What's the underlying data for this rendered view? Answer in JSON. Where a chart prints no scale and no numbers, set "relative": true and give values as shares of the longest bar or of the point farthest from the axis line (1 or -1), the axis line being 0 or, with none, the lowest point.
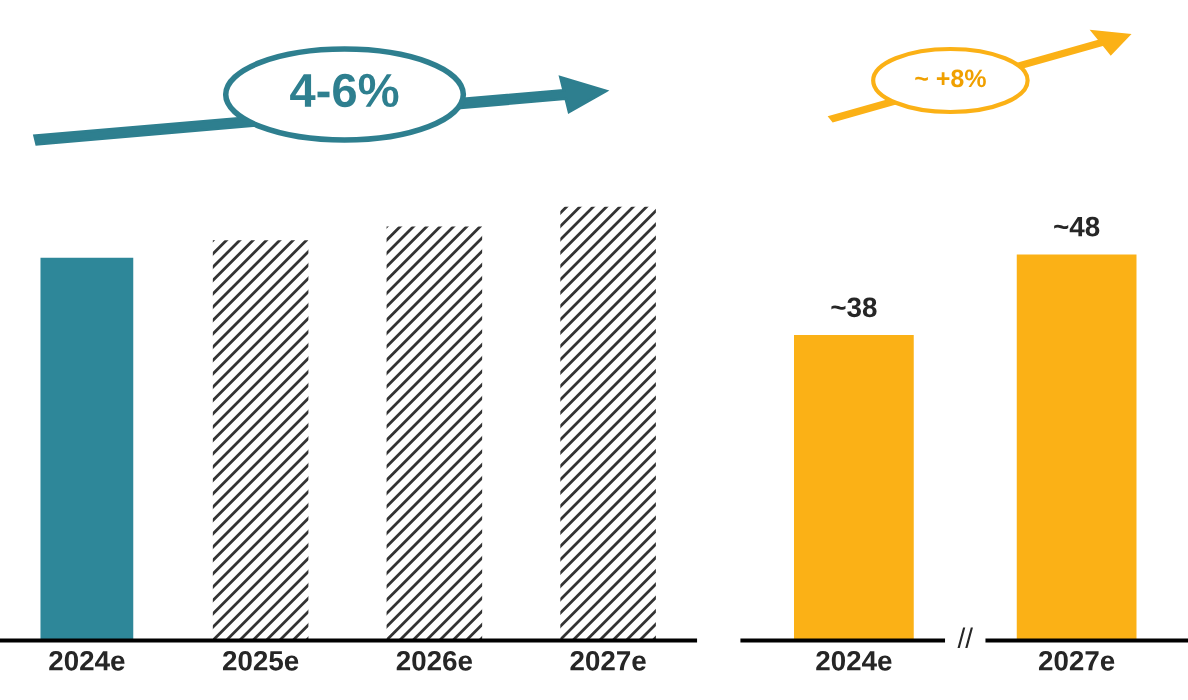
{
  "chart_data": [
    {
      "type": "bar",
      "relative": true,
      "categories": [
        "2024e",
        "2025e",
        "2026e",
        "2027e"
      ],
      "values": [
        0.885,
        0.922,
        0.954,
        1
      ],
      "colors": [
        "#2e8799",
        "#333333",
        "#333333",
        "#333333"
      ],
      "annotations": [
        "4-6%"
      ],
      "tick_labels": "x"
    },
    {
      "type": "bar",
      "categories": [
        "2024e",
        "2027e"
      ],
      "values": [
        38,
        48
      ],
      "value_labels": [
        "~38",
        "~48"
      ],
      "colors": [
        "#fbb116",
        "#fbb116"
      ],
      "annotations": [
        "~ +8%",
        "//"
      ],
      "tick_labels": "x"
    }
  ]
}
